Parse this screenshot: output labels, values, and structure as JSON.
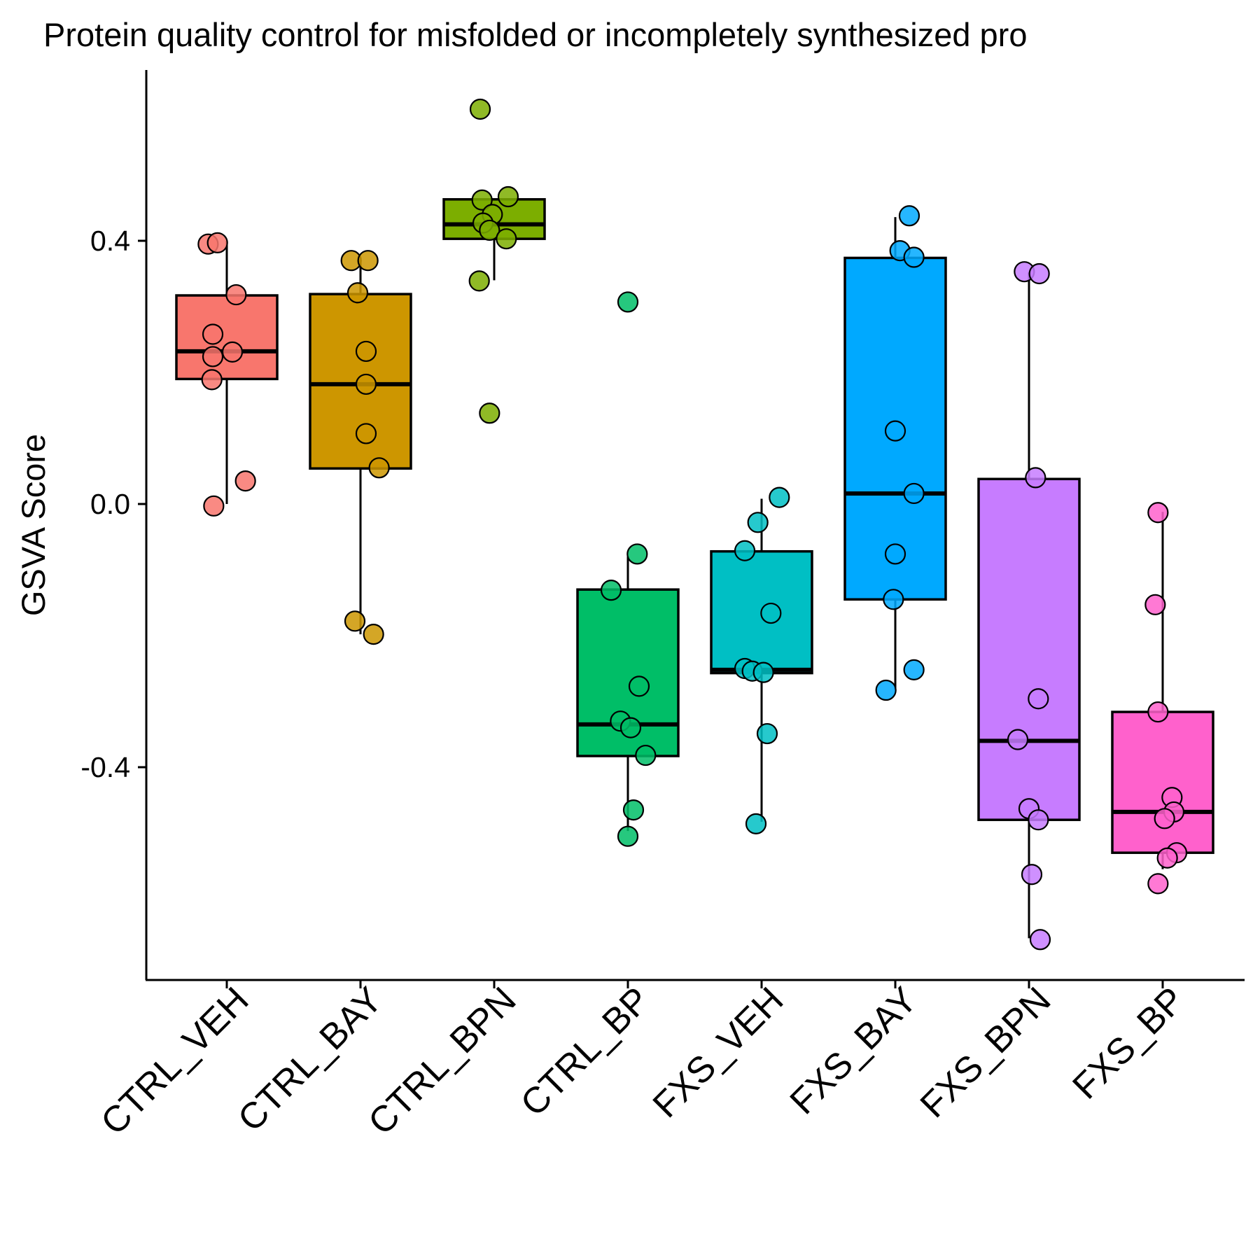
{
  "chart_data": {
    "type": "box",
    "title": "Protein quality control for misfolded or incompletely synthesized pro",
    "xlabel": "",
    "ylabel": "GSVA Score",
    "ylim": [
      -0.72,
      0.66
    ],
    "yticks": [
      {
        "value": 0.4,
        "label": "0.4"
      },
      {
        "value": 0.0,
        "label": "0.0"
      },
      {
        "value": -0.4,
        "label": "-0.4"
      }
    ],
    "grid": false,
    "legend": "none",
    "categories": [
      "CTRL_VEH",
      "CTRL_BAY",
      "CTRL_BPN",
      "CTRL_BP",
      "FXS_VEH",
      "FXS_BAY",
      "FXS_BPN",
      "FXS_BP"
    ],
    "colors": [
      "#F8766D",
      "#CD9600",
      "#7CAE00",
      "#00BE67",
      "#00BFC4",
      "#00A9FF",
      "#C77CFF",
      "#FF61CC"
    ],
    "series": [
      {
        "category": "CTRL_VEH",
        "box": {
          "q1": 0.19,
          "median": 0.232,
          "q3": 0.317,
          "whisker_low": 0.0,
          "whisker_high": 0.4
        },
        "points": [
          {
            "j": -0.2,
            "y": 0.395
          },
          {
            "j": -0.1,
            "y": 0.397
          },
          {
            "j": 0.1,
            "y": 0.318
          },
          {
            "j": -0.15,
            "y": 0.258
          },
          {
            "j": 0.06,
            "y": 0.231
          },
          {
            "j": -0.15,
            "y": 0.224
          },
          {
            "j": -0.16,
            "y": 0.189
          },
          {
            "j": 0.2,
            "y": 0.035
          },
          {
            "j": -0.14,
            "y": -0.003
          }
        ]
      },
      {
        "category": "CTRL_BAY",
        "box": {
          "q1": 0.054,
          "median": 0.182,
          "q3": 0.319,
          "whisker_low": -0.198,
          "whisker_high": 0.37
        },
        "points": [
          {
            "j": -0.1,
            "y": 0.37
          },
          {
            "j": 0.08,
            "y": 0.37
          },
          {
            "j": -0.03,
            "y": 0.321
          },
          {
            "j": 0.06,
            "y": 0.232
          },
          {
            "j": 0.06,
            "y": 0.182
          },
          {
            "j": 0.06,
            "y": 0.107
          },
          {
            "j": 0.2,
            "y": 0.055
          },
          {
            "j": -0.06,
            "y": -0.178
          },
          {
            "j": 0.14,
            "y": -0.198
          }
        ]
      },
      {
        "category": "CTRL_BPN",
        "box": {
          "q1": 0.403,
          "median": 0.425,
          "q3": 0.463,
          "whisker_low": 0.34,
          "whisker_high": 0.463
        },
        "points": [
          {
            "j": -0.15,
            "y": 0.6
          },
          {
            "j": 0.15,
            "y": 0.467
          },
          {
            "j": -0.13,
            "y": 0.462
          },
          {
            "j": -0.02,
            "y": 0.44
          },
          {
            "j": -0.12,
            "y": 0.427
          },
          {
            "j": -0.05,
            "y": 0.416
          },
          {
            "j": 0.13,
            "y": 0.403
          },
          {
            "j": -0.16,
            "y": 0.339
          },
          {
            "j": -0.05,
            "y": 0.138
          }
        ]
      },
      {
        "category": "CTRL_BP",
        "box": {
          "q1": -0.383,
          "median": -0.335,
          "q3": -0.13,
          "whisker_low": -0.497,
          "whisker_high": -0.08
        },
        "points": [
          {
            "j": 0.0,
            "y": 0.307
          },
          {
            "j": 0.1,
            "y": -0.076
          },
          {
            "j": -0.18,
            "y": -0.131
          },
          {
            "j": 0.12,
            "y": -0.277
          },
          {
            "j": -0.08,
            "y": -0.33
          },
          {
            "j": 0.03,
            "y": -0.34
          },
          {
            "j": 0.19,
            "y": -0.382
          },
          {
            "j": 0.06,
            "y": -0.465
          },
          {
            "j": 0.0,
            "y": -0.505
          }
        ]
      },
      {
        "category": "FXS_VEH",
        "box": {
          "q1": -0.257,
          "median": -0.252,
          "q3": -0.072,
          "whisker_low": -0.483,
          "whisker_high": 0.008
        },
        "points": [
          {
            "j": 0.19,
            "y": 0.01
          },
          {
            "j": -0.04,
            "y": -0.028
          },
          {
            "j": -0.18,
            "y": -0.071
          },
          {
            "j": 0.1,
            "y": -0.166
          },
          {
            "j": -0.18,
            "y": -0.25
          },
          {
            "j": -0.1,
            "y": -0.254
          },
          {
            "j": 0.02,
            "y": -0.256
          },
          {
            "j": 0.06,
            "y": -0.349
          },
          {
            "j": -0.06,
            "y": -0.486
          }
        ]
      },
      {
        "category": "FXS_BAY",
        "box": {
          "q1": -0.145,
          "median": 0.016,
          "q3": 0.374,
          "whisker_low": -0.282,
          "whisker_high": 0.436
        },
        "points": [
          {
            "j": 0.15,
            "y": 0.438
          },
          {
            "j": 0.05,
            "y": 0.385
          },
          {
            "j": 0.2,
            "y": 0.375
          },
          {
            "j": 0.0,
            "y": 0.111
          },
          {
            "j": 0.2,
            "y": 0.016
          },
          {
            "j": 0.0,
            "y": -0.076
          },
          {
            "j": -0.02,
            "y": -0.145
          },
          {
            "j": 0.2,
            "y": -0.252
          },
          {
            "j": -0.1,
            "y": -0.283
          }
        ]
      },
      {
        "category": "FXS_BPN",
        "box": {
          "q1": -0.48,
          "median": -0.36,
          "q3": 0.038,
          "whisker_low": -0.66,
          "whisker_high": 0.352
        },
        "points": [
          {
            "j": -0.05,
            "y": 0.353
          },
          {
            "j": 0.11,
            "y": 0.35
          },
          {
            "j": 0.07,
            "y": 0.04
          },
          {
            "j": 0.1,
            "y": -0.296
          },
          {
            "j": -0.12,
            "y": -0.358
          },
          {
            "j": 0.0,
            "y": -0.463
          },
          {
            "j": 0.1,
            "y": -0.48
          },
          {
            "j": 0.03,
            "y": -0.563
          },
          {
            "j": 0.12,
            "y": -0.662
          }
        ]
      },
      {
        "category": "FXS_BP",
        "box": {
          "q1": -0.53,
          "median": -0.468,
          "q3": -0.316,
          "whisker_low": -0.555,
          "whisker_high": -0.012
        },
        "points": [
          {
            "j": -0.05,
            "y": -0.013
          },
          {
            "j": -0.08,
            "y": -0.153
          },
          {
            "j": -0.05,
            "y": -0.316
          },
          {
            "j": 0.1,
            "y": -0.446
          },
          {
            "j": 0.12,
            "y": -0.468
          },
          {
            "j": 0.02,
            "y": -0.478
          },
          {
            "j": 0.15,
            "y": -0.53
          },
          {
            "j": 0.05,
            "y": -0.538
          },
          {
            "j": -0.05,
            "y": -0.577
          }
        ]
      }
    ]
  }
}
